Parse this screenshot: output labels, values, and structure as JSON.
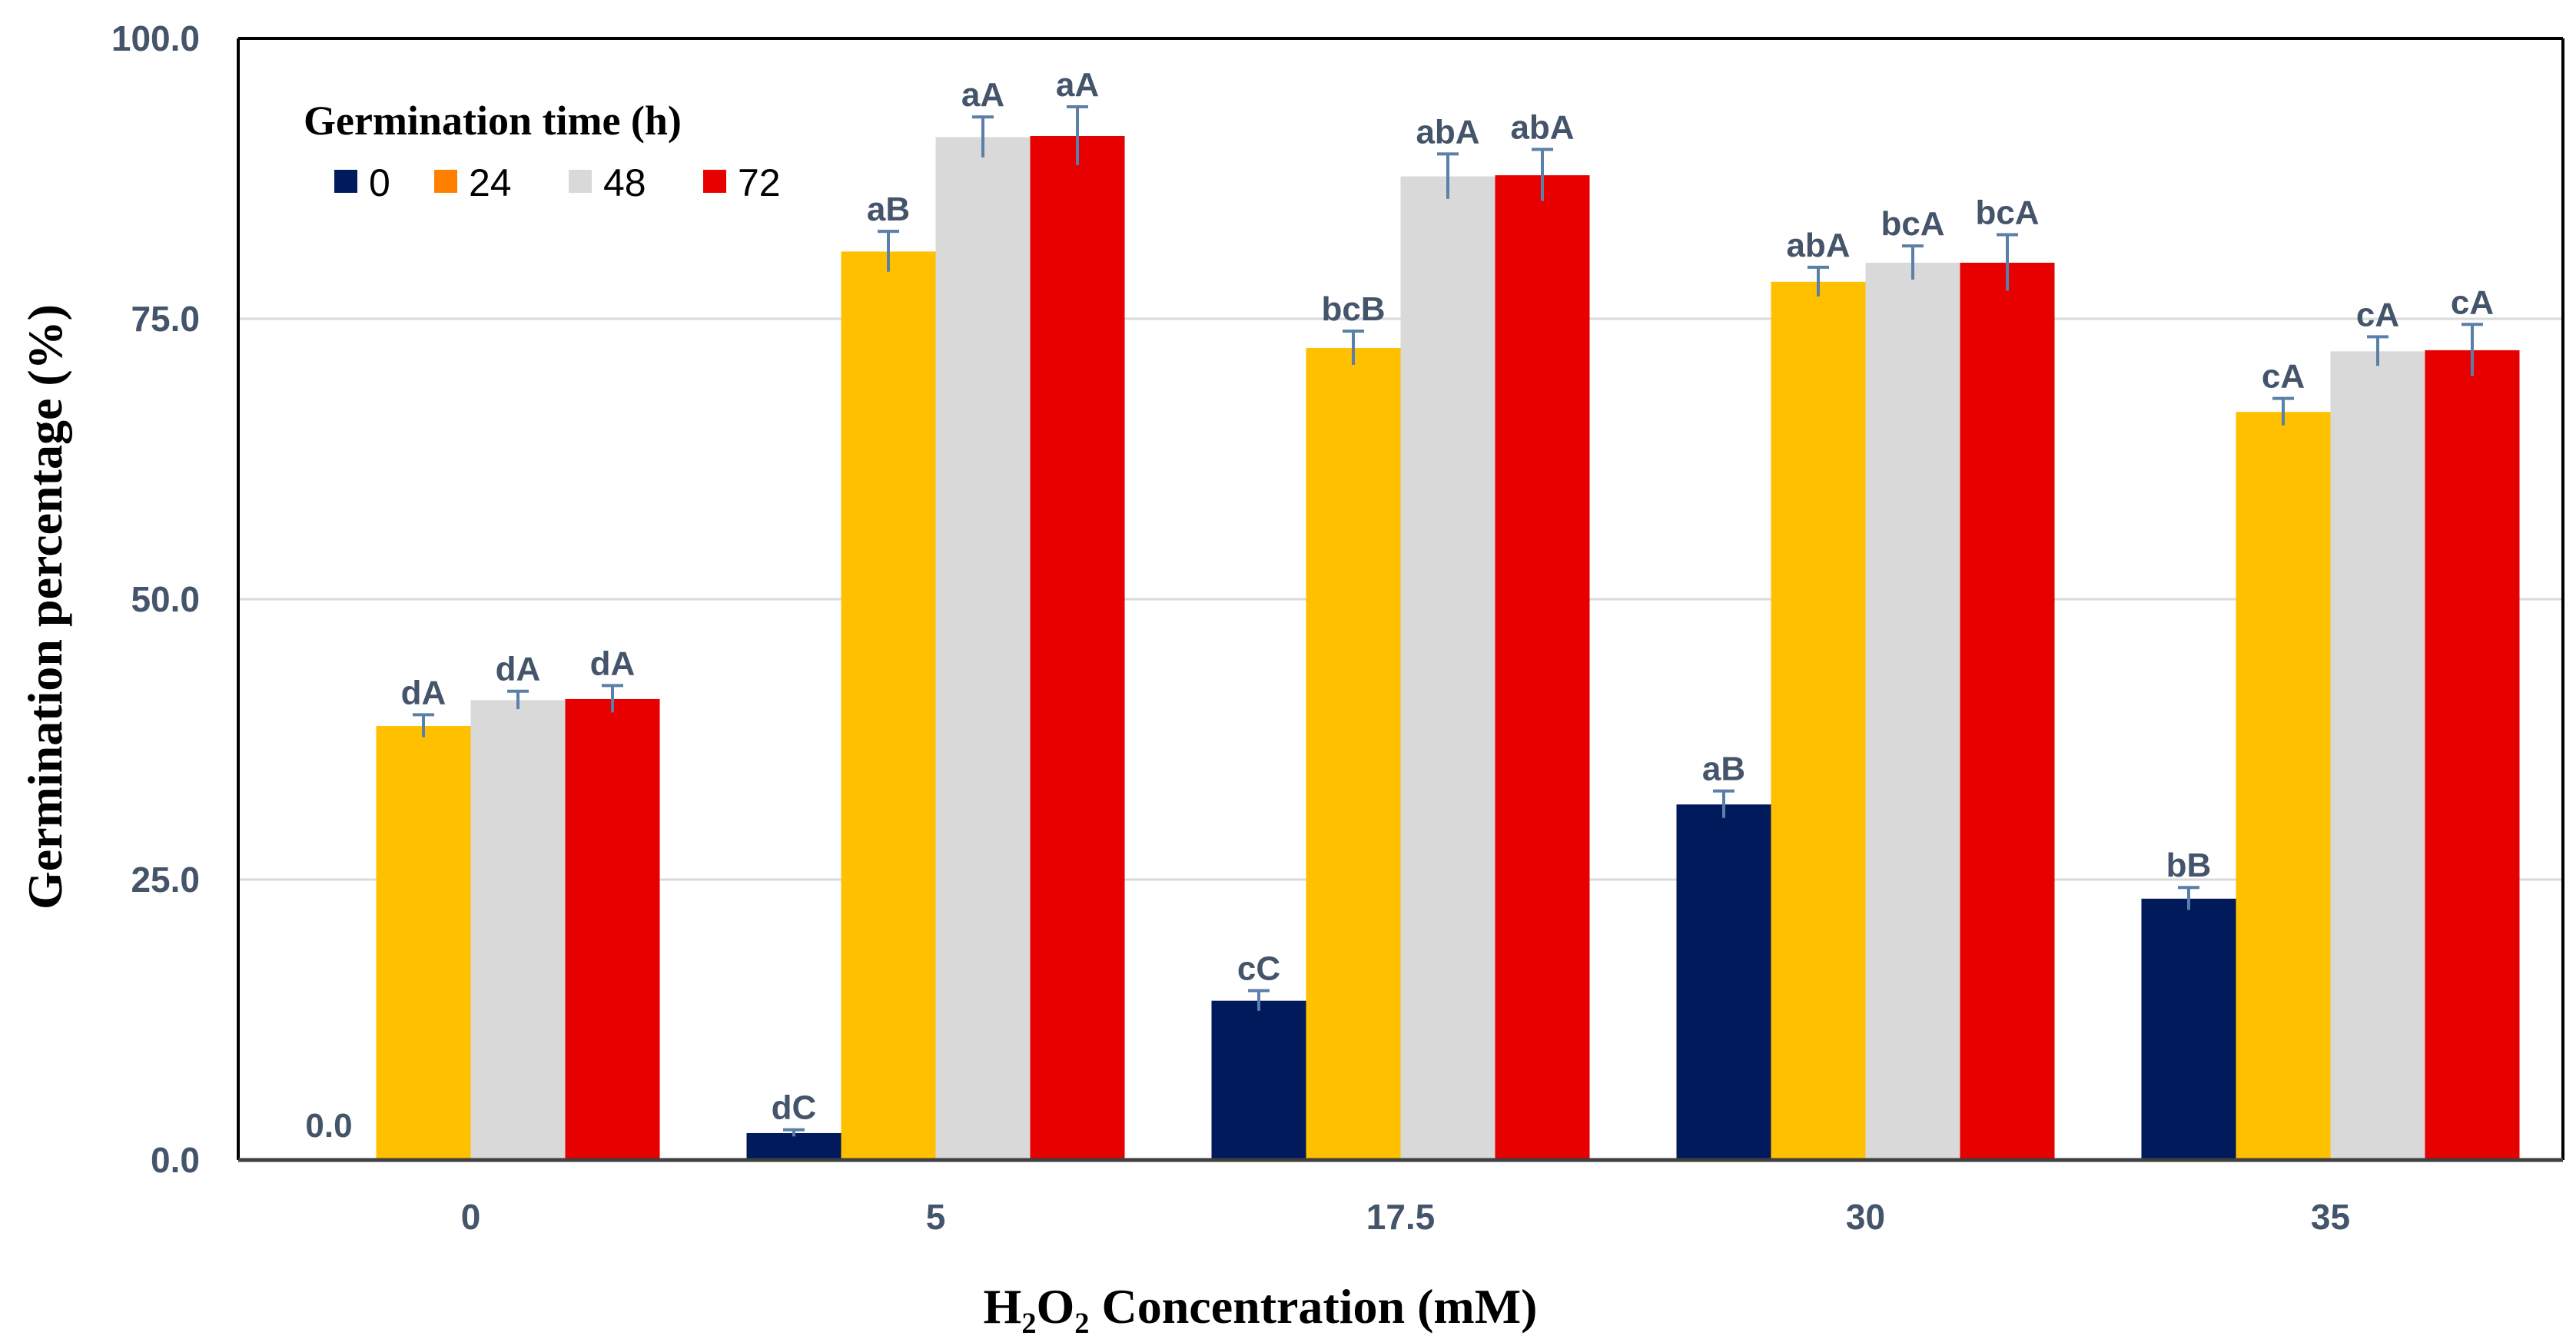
{
  "chart_data": {
    "type": "bar",
    "title": "",
    "xlabel": "H₂O₂ Concentration (mM)",
    "ylabel": "Germination percentage (%)",
    "ylim": [
      0,
      100
    ],
    "yticks": [
      "0.0",
      "25.0",
      "50.0",
      "75.0",
      "100.0"
    ],
    "categories": [
      "0",
      "5",
      "17.5",
      "30",
      "35"
    ],
    "legend": {
      "title": "Germination time (h)",
      "position": "top-left"
    },
    "grid": "horizontal",
    "series": [
      {
        "name": "0",
        "color": "#001a5c",
        "values": [
          0.0,
          2.4,
          14.2,
          31.7,
          23.3
        ],
        "errors": [
          0,
          0.3,
          0.9,
          1.2,
          1.0
        ],
        "labels": [
          "0.0",
          "dC",
          "cC",
          "aB",
          "bB"
        ]
      },
      {
        "name": "24",
        "color": "#ffc000",
        "values": [
          38.7,
          81.0,
          72.4,
          78.3,
          66.7
        ],
        "errors": [
          1.0,
          1.8,
          1.5,
          1.3,
          1.2
        ],
        "labels": [
          "dA",
          "aB",
          "bcB",
          "abA",
          "cA"
        ]
      },
      {
        "name": "48",
        "color": "#d9d9d9",
        "values": [
          41.0,
          91.2,
          87.7,
          80.0,
          72.1
        ],
        "errors": [
          0.8,
          1.8,
          2.0,
          1.5,
          1.3
        ],
        "labels": [
          "dA",
          "aA",
          "abA",
          "bcA",
          "cA"
        ]
      },
      {
        "name": "72",
        "color": "#e60000",
        "values": [
          41.1,
          91.3,
          87.8,
          80.0,
          72.2
        ],
        "errors": [
          1.2,
          2.6,
          2.3,
          2.5,
          2.3
        ],
        "labels": [
          "dA",
          "aA",
          "abA",
          "bcA",
          "cA"
        ]
      }
    ],
    "legend_swatch_24_color": "#ff7f00"
  }
}
